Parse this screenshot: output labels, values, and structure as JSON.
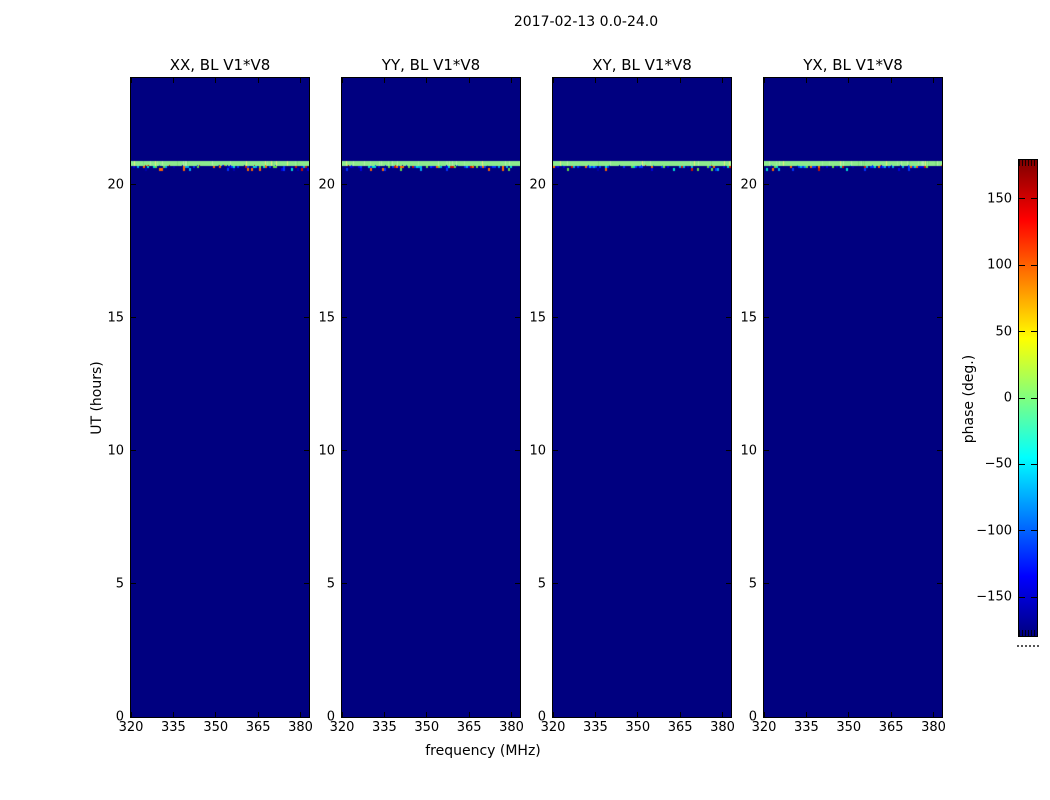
{
  "figure": {
    "title": "2017-02-13 0.0-24.0"
  },
  "chart_data": {
    "type": "heatmap",
    "title": "2017-02-13 0.0-24.0",
    "panels": [
      {
        "id": "XX",
        "title": "XX, BL V1*V8"
      },
      {
        "id": "YY",
        "title": "YY, BL V1*V8"
      },
      {
        "id": "XY",
        "title": "XY, BL V1*V8"
      },
      {
        "id": "YX",
        "title": "YX, BL V1*V8"
      }
    ],
    "x": {
      "label": "frequency (MHz)",
      "range": [
        320,
        383
      ],
      "ticks": [
        320,
        335,
        350,
        365,
        380
      ],
      "tick_labels": [
        "320",
        "335",
        "350",
        "365",
        "380"
      ]
    },
    "y": {
      "label": "UT (hours)",
      "range": [
        0,
        24
      ],
      "ticks": [
        0,
        5,
        10,
        15,
        20
      ],
      "tick_labels": [
        "0",
        "5",
        "10",
        "15",
        "20"
      ]
    },
    "colorbar": {
      "label": "phase (deg.)",
      "colormap": "jet",
      "range": [
        -180,
        180
      ],
      "ticks": [
        150,
        100,
        50,
        0,
        -50,
        -100,
        -150
      ],
      "tick_labels": [
        "150",
        "100",
        "50",
        "0",
        "−50",
        "−100",
        "−150"
      ]
    },
    "content": {
      "description": "All four panels show a uniform dark-blue field (phase near -180 deg) with one light-green horizontal stripe near UT 20.8 and a thin row of multicolour noise pixels just below it; identical in every panel.",
      "background_color": "#000080",
      "background_phase_deg": -180,
      "stripe": {
        "ut_start_hours": 20.68,
        "ut_end_hours": 20.88,
        "phase_deg": 10,
        "color": "#8deb8d",
        "alt_colors": [
          "#9ff09f",
          "#7de07d",
          "#b2f0a8",
          "#e6f07e"
        ]
      },
      "noise_row": {
        "ut_start_hours": 20.52,
        "ut_end_hours": 20.68,
        "palette": [
          "#0000e0",
          "#0033ff",
          "#0033ff",
          "#00aaee",
          "#00e0d0",
          "#cc1100",
          "#ff6600",
          "#66dd44",
          "#0000b0"
        ],
        "density": 0.55
      }
    }
  }
}
